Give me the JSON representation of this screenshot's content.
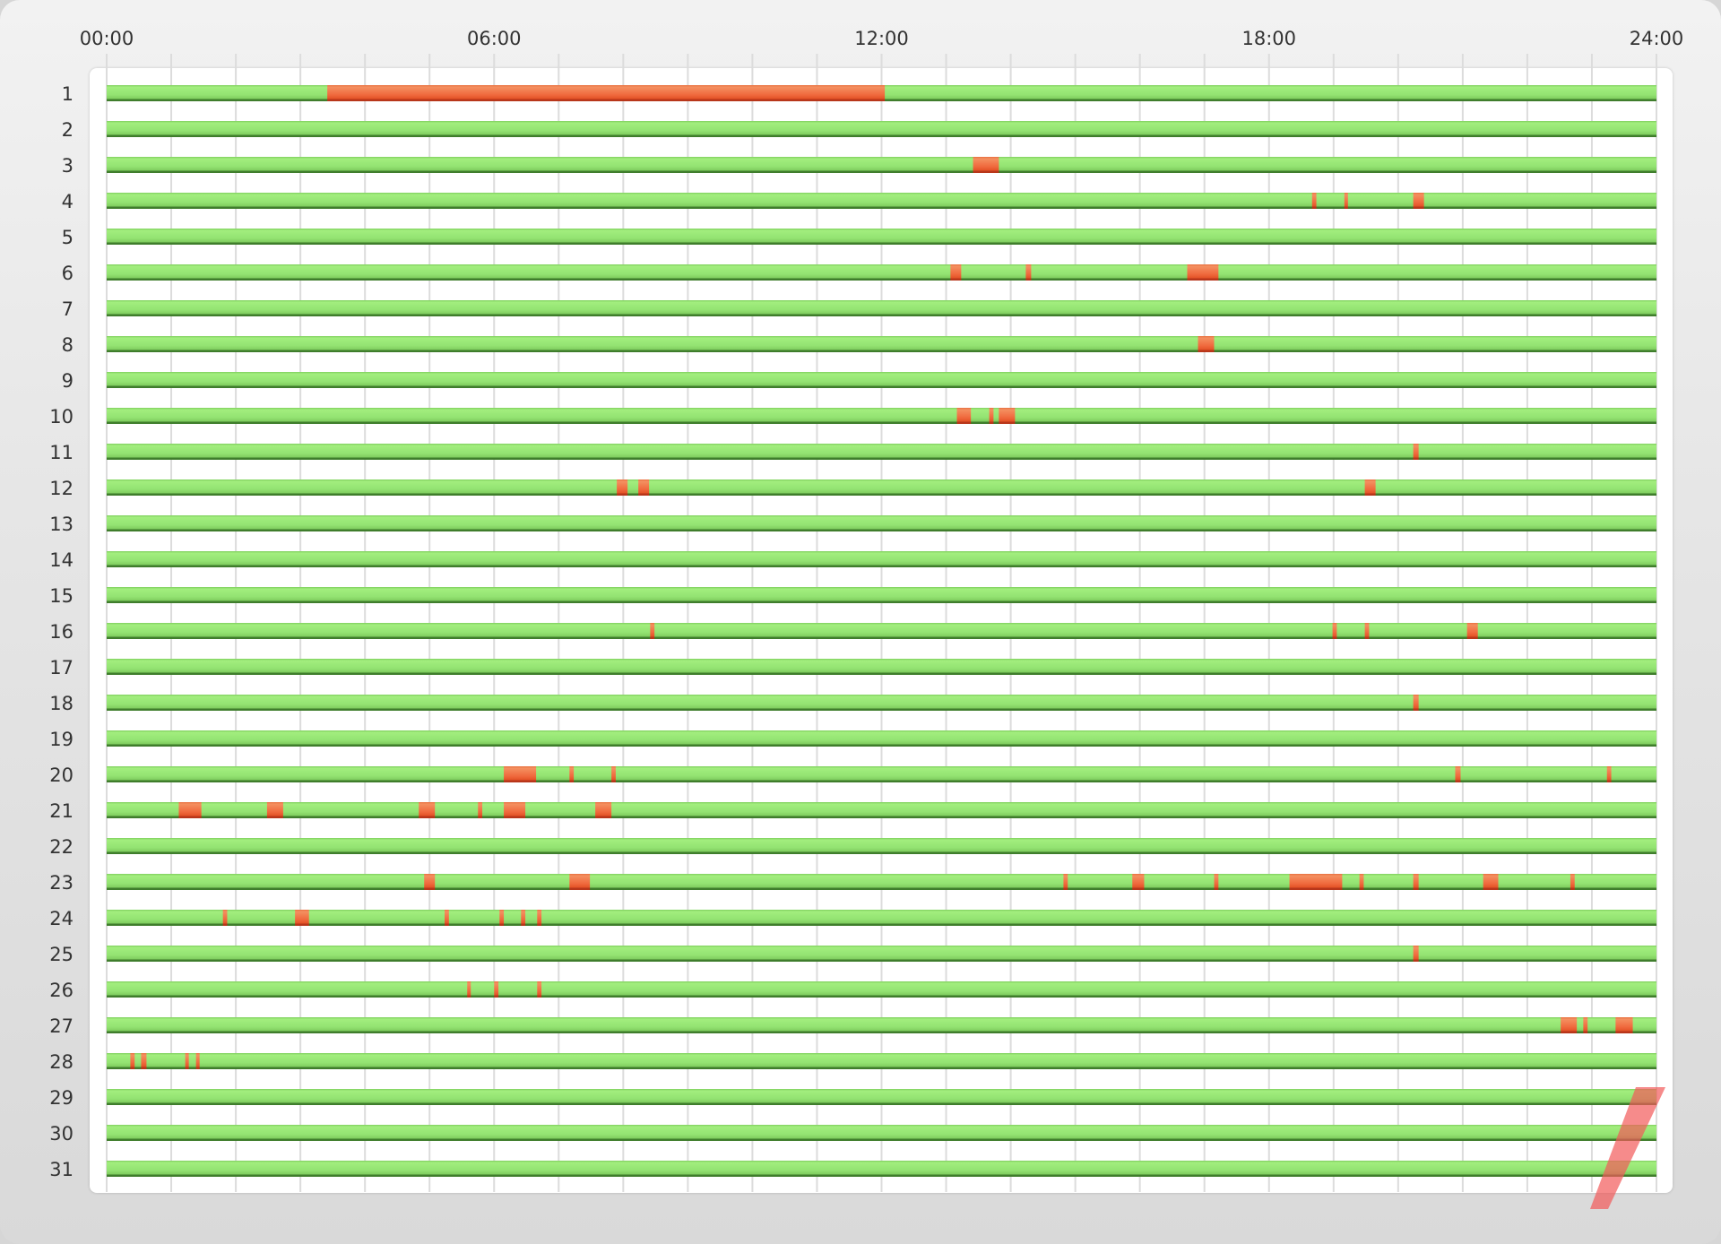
{
  "chart_data": {
    "type": "bar",
    "orientation": "horizontal-timeline",
    "x_ticks": [
      "00:00",
      "06:00",
      "12:00",
      "18:00",
      "24:00"
    ],
    "xlim": [
      "00:00",
      "24:00"
    ],
    "grid": "vertical, hourly",
    "categories": [
      "1",
      "2",
      "3",
      "4",
      "5",
      "6",
      "7",
      "8",
      "9",
      "10",
      "11",
      "12",
      "13",
      "14",
      "15",
      "16",
      "17",
      "18",
      "19",
      "20",
      "21",
      "22",
      "23",
      "24",
      "25",
      "26",
      "27",
      "28",
      "29",
      "30",
      "31"
    ],
    "colors": {
      "normal": "#8ee06e",
      "interruption": "#f06a3e",
      "overlay_mark": "#f25a5a"
    },
    "interruptions": {
      "1": [
        [
          "03:25",
          "12:03"
        ]
      ],
      "3": [
        [
          "13:25",
          "13:49"
        ]
      ],
      "4": [
        [
          "18:40",
          "18:44"
        ],
        [
          "19:10",
          "19:13"
        ],
        [
          "20:14",
          "20:24"
        ]
      ],
      "6": [
        [
          "13:04",
          "13:14"
        ],
        [
          "14:14",
          "14:19"
        ],
        [
          "16:44",
          "17:13"
        ]
      ],
      "8": [
        [
          "16:54",
          "17:09"
        ]
      ],
      "10": [
        [
          "13:10",
          "13:23"
        ],
        [
          "13:40",
          "13:44"
        ],
        [
          "13:49",
          "14:04"
        ]
      ],
      "11": [
        [
          "20:14",
          "20:19"
        ]
      ],
      "12": [
        [
          "07:54",
          "08:04"
        ],
        [
          "08:14",
          "08:24"
        ],
        [
          "19:29",
          "19:39"
        ]
      ],
      "16": [
        [
          "08:25",
          "08:29"
        ],
        [
          "18:59",
          "19:03"
        ],
        [
          "19:29",
          "19:33"
        ],
        [
          "21:04",
          "21:14"
        ]
      ],
      "18": [
        [
          "20:14",
          "20:19"
        ]
      ],
      "20": [
        [
          "06:09",
          "06:39"
        ],
        [
          "07:10",
          "07:14"
        ],
        [
          "07:49",
          "07:53"
        ],
        [
          "20:53",
          "20:58"
        ],
        [
          "23:14",
          "23:18"
        ]
      ],
      "21": [
        [
          "01:07",
          "01:28"
        ],
        [
          "02:29",
          "02:44"
        ],
        [
          "04:50",
          "05:05"
        ],
        [
          "05:45",
          "05:49"
        ],
        [
          "06:09",
          "06:29"
        ],
        [
          "07:34",
          "07:49"
        ]
      ],
      "23": [
        [
          "04:55",
          "05:05"
        ],
        [
          "07:10",
          "07:29"
        ],
        [
          "14:49",
          "14:53"
        ],
        [
          "15:53",
          "16:04"
        ],
        [
          "17:09",
          "17:13"
        ],
        [
          "18:19",
          "19:08"
        ],
        [
          "19:24",
          "19:28"
        ],
        [
          "20:14",
          "20:19"
        ],
        [
          "21:19",
          "21:33"
        ],
        [
          "22:40",
          "22:44"
        ]
      ],
      "24": [
        [
          "01:48",
          "01:52"
        ],
        [
          "02:55",
          "03:08"
        ],
        [
          "05:14",
          "05:18"
        ],
        [
          "06:05",
          "06:09"
        ],
        [
          "06:25",
          "06:29"
        ],
        [
          "06:40",
          "06:44"
        ]
      ],
      "25": [
        [
          "20:14",
          "20:19"
        ]
      ],
      "26": [
        [
          "05:35",
          "05:38"
        ],
        [
          "06:00",
          "06:04"
        ],
        [
          "06:40",
          "06:44"
        ]
      ],
      "27": [
        [
          "22:31",
          "22:46"
        ],
        [
          "22:52",
          "22:56"
        ],
        [
          "23:22",
          "23:38"
        ]
      ],
      "28": [
        [
          "00:22",
          "00:26"
        ],
        [
          "00:32",
          "00:37"
        ],
        [
          "01:13",
          "01:16"
        ],
        [
          "01:23",
          "01:26"
        ]
      ]
    }
  }
}
